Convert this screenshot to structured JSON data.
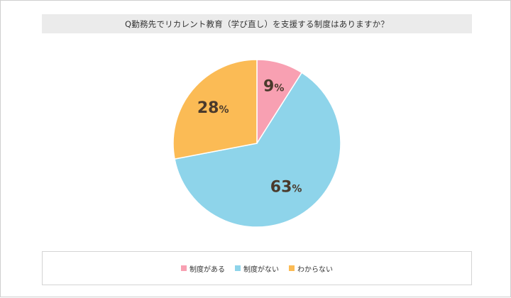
{
  "chart_data": {
    "type": "pie",
    "title": "Q勤務先でリカレント教育（学び直し）を支援する制度はありますか？",
    "categories": [
      "制度がある",
      "制度がない",
      "わからない"
    ],
    "values": [
      9,
      63,
      28
    ],
    "colors": [
      "#f8a0b2",
      "#8ed4ea",
      "#fbbb55"
    ],
    "unit": "%",
    "legend": "bottom",
    "start_angle": "top, clockwise"
  }
}
